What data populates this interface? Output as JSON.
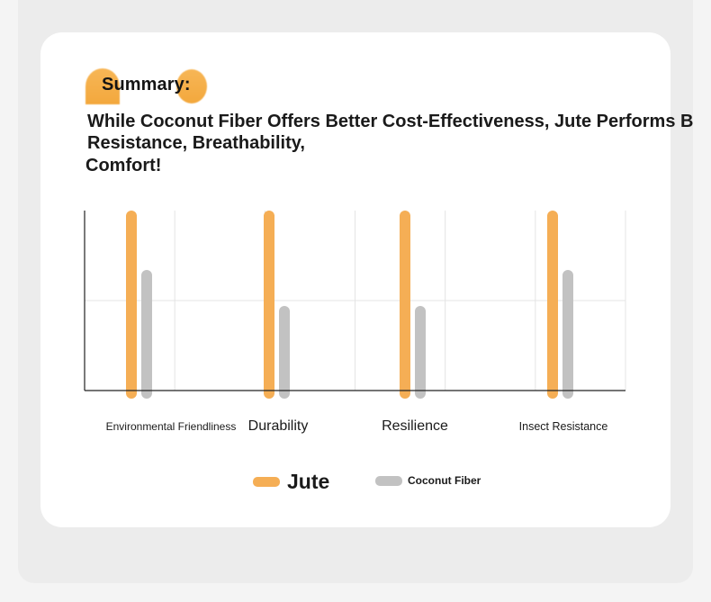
{
  "summary": {
    "label": "Summary:",
    "headline_line1": "While Coconut Fiber Offers Better Cost-Effectiveness, Jute Performs B",
    "headline_line2": "Resistance, Breathability,",
    "headline_line3": "Comfort!"
  },
  "colors": {
    "jute": "#f5ae55",
    "coconut": "#c2c2c2",
    "accent": "#f5ae55",
    "axis": "#222222",
    "grid": "#e4e4e4"
  },
  "chart_data": {
    "type": "bar",
    "categories": [
      "Environmental Friendliness",
      "Durability",
      "Resilience",
      "Insect Resistance"
    ],
    "series": [
      {
        "name": "Jute",
        "values": [
          10,
          10,
          10,
          10
        ]
      },
      {
        "name": "Coconut Fiber",
        "values": [
          6.7,
          4.7,
          4.7,
          6.7
        ]
      }
    ],
    "title": "",
    "xlabel": "",
    "ylabel": "",
    "ylim": [
      0,
      10
    ],
    "grid": true,
    "legend": "bottom"
  }
}
